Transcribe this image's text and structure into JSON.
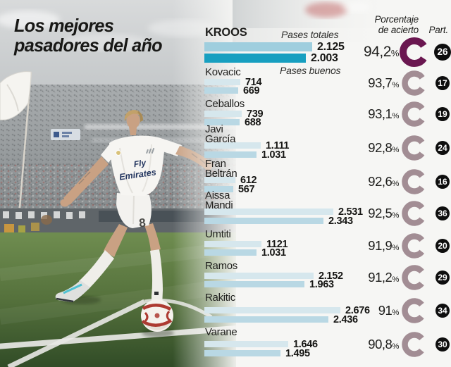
{
  "title": {
    "line1": "Los mejores",
    "line2": "pasadores del año"
  },
  "headers": {
    "metric_top": "Pases totales",
    "metric_bottom": "Pases buenos",
    "accuracy_line1": "Porcentaje",
    "accuracy_line2": "de acierto",
    "participations": "Part.",
    "percent_sign": "%"
  },
  "photo": {
    "jersey_line1": "Fly",
    "jersey_line2": "Emirates",
    "shorts_number": "8"
  },
  "colors": {
    "ring_highlight": "#6a1750",
    "ring_muted": "#a28d94",
    "bar_total_highlight": "#9fcede",
    "bar_buenos_highlight": "#179fc0",
    "bar_total": "#d6e7ed",
    "bar_buenos": "#b9d8e4",
    "badge_bg": "#0e0e0e",
    "badge_text": "#ffffff",
    "text_dark": "#1d1d1b"
  },
  "chart_data": {
    "type": "bar",
    "orientation": "horizontal",
    "title": "Los mejores pasadores del año",
    "series_labels": [
      "Pases totales",
      "Pases buenos"
    ],
    "x_max": 2676,
    "players": [
      {
        "name_lines": [
          "KROOS"
        ],
        "pases_totales": 2125,
        "pases_totales_label": "2.125",
        "pases_buenos": 2003,
        "pases_buenos_label": "2.003",
        "acierto_pct": 94.2,
        "acierto_label": "94,2",
        "part": 26,
        "part_label": "26",
        "highlight": true
      },
      {
        "name_lines": [
          "Kovacic"
        ],
        "pases_totales": 714,
        "pases_totales_label": "714",
        "pases_buenos": 669,
        "pases_buenos_label": "669",
        "acierto_pct": 93.7,
        "acierto_label": "93,7",
        "part": 17,
        "part_label": "17",
        "highlight": false
      },
      {
        "name_lines": [
          "Ceballos"
        ],
        "pases_totales": 739,
        "pases_totales_label": "739",
        "pases_buenos": 688,
        "pases_buenos_label": "688",
        "acierto_pct": 93.1,
        "acierto_label": "93,1",
        "part": 19,
        "part_label": "19",
        "highlight": false
      },
      {
        "name_lines": [
          "Javi",
          "García"
        ],
        "pases_totales": 1111,
        "pases_totales_label": "1.111",
        "pases_buenos": 1031,
        "pases_buenos_label": "1.031",
        "acierto_pct": 92.8,
        "acierto_label": "92,8",
        "part": 24,
        "part_label": "24",
        "highlight": false
      },
      {
        "name_lines": [
          "Fran",
          "Beltrán"
        ],
        "pases_totales": 612,
        "pases_totales_label": "612",
        "pases_buenos": 567,
        "pases_buenos_label": "567",
        "acierto_pct": 92.6,
        "acierto_label": "92,6",
        "part": 16,
        "part_label": "16",
        "highlight": false
      },
      {
        "name_lines": [
          "Aissa",
          "Mandi"
        ],
        "pases_totales": 2531,
        "pases_totales_label": "2.531",
        "pases_buenos": 2343,
        "pases_buenos_label": "2.343",
        "acierto_pct": 92.5,
        "acierto_label": "92,5",
        "part": 36,
        "part_label": "36",
        "highlight": false
      },
      {
        "name_lines": [
          "Umtiti"
        ],
        "pases_totales": 1121,
        "pases_totales_label": "1121",
        "pases_buenos": 1031,
        "pases_buenos_label": "1.031",
        "acierto_pct": 91.9,
        "acierto_label": "91,9",
        "part": 20,
        "part_label": "20",
        "highlight": false
      },
      {
        "name_lines": [
          "Ramos"
        ],
        "pases_totales": 2152,
        "pases_totales_label": "2.152",
        "pases_buenos": 1963,
        "pases_buenos_label": "1.963",
        "acierto_pct": 91.2,
        "acierto_label": "91,2",
        "part": 29,
        "part_label": "29",
        "highlight": false
      },
      {
        "name_lines": [
          "Rakitic"
        ],
        "pases_totales": 2676,
        "pases_totales_label": "2.676",
        "pases_buenos": 2436,
        "pases_buenos_label": "2.436",
        "acierto_pct": 91.0,
        "acierto_label": "91",
        "part": 34,
        "part_label": "34",
        "highlight": false
      },
      {
        "name_lines": [
          "Varane"
        ],
        "pases_totales": 1646,
        "pases_totales_label": "1.646",
        "pases_buenos": 1495,
        "pases_buenos_label": "1.495",
        "acierto_pct": 90.8,
        "acierto_label": "90,8",
        "part": 30,
        "part_label": "30",
        "highlight": false
      }
    ]
  }
}
